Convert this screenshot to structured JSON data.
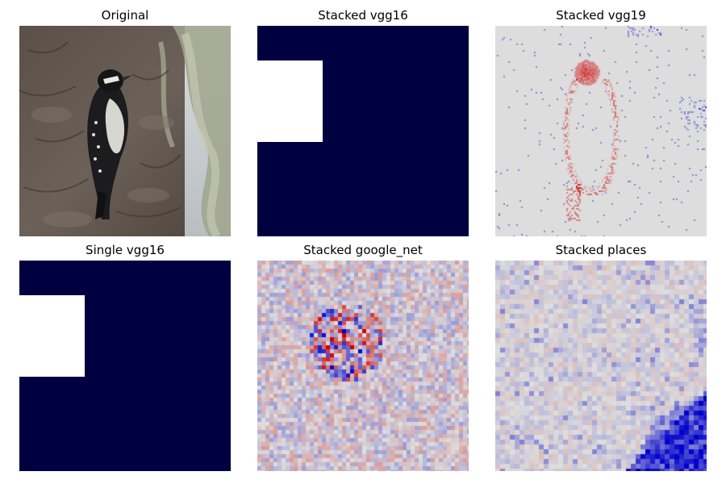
{
  "panels": [
    {
      "title": "Original",
      "kind": "photo",
      "subject": "bird-photo"
    },
    {
      "title": "Stacked vgg16",
      "kind": "mask",
      "colors": {
        "fill": "#000040",
        "hole": "#ffffff"
      }
    },
    {
      "title": "Stacked vgg19",
      "kind": "heatmap-sparse"
    },
    {
      "title": "Single vgg16",
      "kind": "mask",
      "colors": {
        "fill": "#000040",
        "hole": "#ffffff"
      }
    },
    {
      "title": "Stacked google_net",
      "kind": "heatmap-noisy"
    },
    {
      "title": "Stacked places",
      "kind": "heatmap-corner"
    }
  ],
  "colormap": {
    "low": "#0000cc",
    "mid": "#dddddd",
    "high": "#cc0000"
  }
}
